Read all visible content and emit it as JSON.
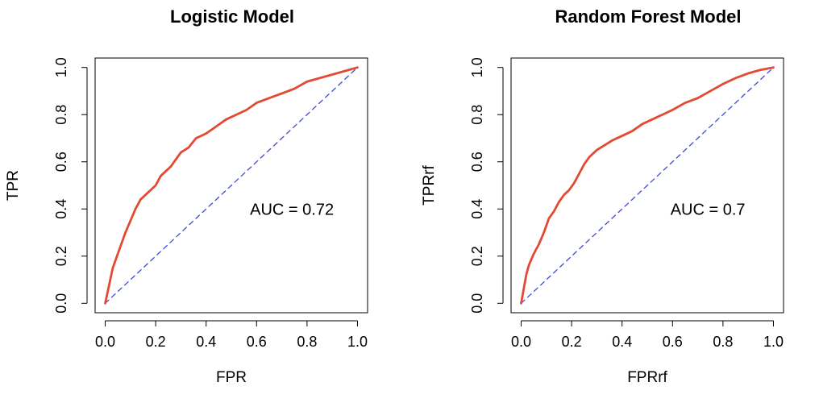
{
  "chart_data": [
    {
      "type": "line",
      "title": "Logistic Model",
      "xlabel": "FPR",
      "ylabel": "TPR",
      "xlim": [
        0,
        1
      ],
      "ylim": [
        0,
        1
      ],
      "x_ticks": [
        "0.0",
        "0.2",
        "0.4",
        "0.6",
        "0.8",
        "1.0"
      ],
      "y_ticks": [
        "0.0",
        "0.2",
        "0.4",
        "0.6",
        "0.8",
        "1.0"
      ],
      "annotation": "AUC =  0.72",
      "annotation_pos": [
        0.74,
        0.4
      ],
      "grid": false,
      "legend": "none",
      "series": [
        {
          "style": "solid",
          "color": "#e34a33",
          "x": [
            0.0,
            0.01,
            0.02,
            0.03,
            0.04,
            0.06,
            0.08,
            0.1,
            0.12,
            0.14,
            0.16,
            0.18,
            0.2,
            0.22,
            0.24,
            0.26,
            0.28,
            0.3,
            0.33,
            0.36,
            0.4,
            0.44,
            0.48,
            0.52,
            0.56,
            0.6,
            0.65,
            0.7,
            0.75,
            0.8,
            0.85,
            0.9,
            0.95,
            1.0
          ],
          "y": [
            0.0,
            0.05,
            0.1,
            0.15,
            0.18,
            0.24,
            0.3,
            0.35,
            0.4,
            0.44,
            0.46,
            0.48,
            0.5,
            0.54,
            0.56,
            0.58,
            0.61,
            0.64,
            0.66,
            0.7,
            0.72,
            0.75,
            0.78,
            0.8,
            0.82,
            0.85,
            0.87,
            0.89,
            0.91,
            0.94,
            0.955,
            0.97,
            0.985,
            1.0
          ]
        },
        {
          "style": "dashed",
          "color": "#3b4bd8",
          "x": [
            0,
            1
          ],
          "y": [
            0,
            1
          ]
        }
      ]
    },
    {
      "type": "line",
      "title": "Random Forest Model",
      "xlabel": "FPRrf",
      "ylabel": "TPRrf",
      "xlim": [
        0,
        1
      ],
      "ylim": [
        0,
        1
      ],
      "x_ticks": [
        "0.0",
        "0.2",
        "0.4",
        "0.6",
        "0.8",
        "1.0"
      ],
      "y_ticks": [
        "0.0",
        "0.2",
        "0.4",
        "0.6",
        "0.8",
        "1.0"
      ],
      "annotation": "AUC =  0.7",
      "annotation_pos": [
        0.74,
        0.4
      ],
      "grid": false,
      "legend": "none",
      "series": [
        {
          "style": "solid",
          "color": "#e34a33",
          "x": [
            0.0,
            0.01,
            0.02,
            0.03,
            0.05,
            0.07,
            0.09,
            0.11,
            0.13,
            0.15,
            0.17,
            0.19,
            0.21,
            0.23,
            0.25,
            0.27,
            0.3,
            0.33,
            0.36,
            0.4,
            0.44,
            0.48,
            0.52,
            0.56,
            0.6,
            0.65,
            0.7,
            0.75,
            0.8,
            0.85,
            0.9,
            0.95,
            1.0
          ],
          "y": [
            0.0,
            0.06,
            0.12,
            0.16,
            0.21,
            0.25,
            0.3,
            0.36,
            0.39,
            0.43,
            0.46,
            0.48,
            0.51,
            0.55,
            0.59,
            0.62,
            0.65,
            0.67,
            0.69,
            0.71,
            0.73,
            0.76,
            0.78,
            0.8,
            0.82,
            0.85,
            0.87,
            0.9,
            0.93,
            0.955,
            0.975,
            0.99,
            1.0
          ]
        },
        {
          "style": "dashed",
          "color": "#3b4bd8",
          "x": [
            0,
            1
          ],
          "y": [
            0,
            1
          ]
        }
      ]
    }
  ]
}
